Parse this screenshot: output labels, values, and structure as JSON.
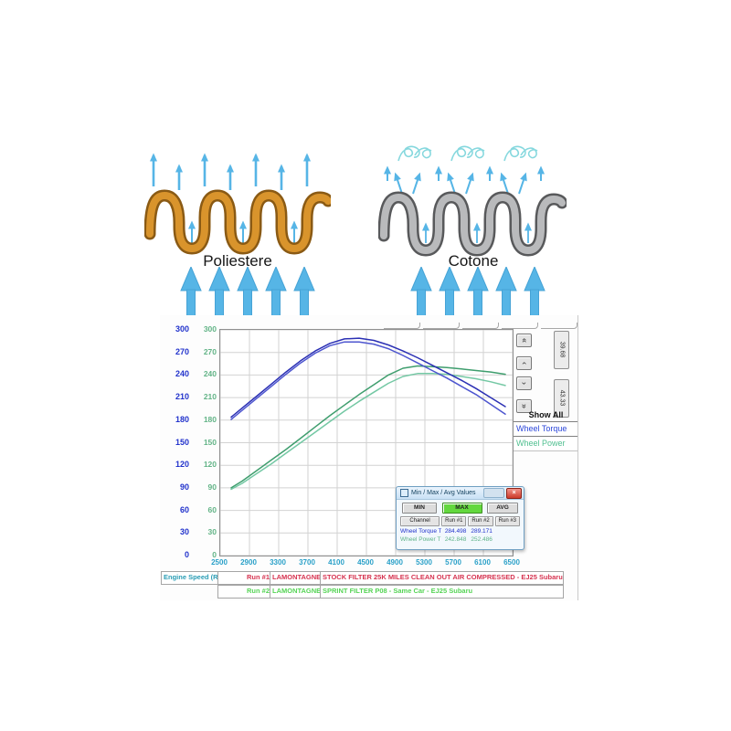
{
  "diagram": {
    "left_label": "Poliestere",
    "right_label": "Cotone",
    "colors": {
      "polyester_wave": "#d9942c",
      "polyester_outline": "#8a5a14",
      "cotton_wave": "#b9babc",
      "cotton_outline": "#58595b",
      "airflow_arrow": "#56b5e6",
      "turbulence": "#86d8de"
    }
  },
  "dyno": {
    "right_panel": {
      "scroll_buttons": [
        "»",
        "›",
        "›",
        "»"
      ],
      "cursor_values": [
        "39.68",
        "43.33"
      ],
      "show_all_label": "Show All",
      "channels": [
        {
          "label": "Wheel Torque",
          "color": "#2b46d9"
        },
        {
          "label": "Wheel Power",
          "color": "#4fbf8f"
        }
      ]
    },
    "dialog": {
      "title": "Min / Max / Avg Values",
      "close_glyph": "×",
      "buttons": {
        "min": "MIN",
        "max": "MAX",
        "avg": "AVG"
      },
      "columns": [
        "Channel",
        "Run #1",
        "Run #2",
        "Run #3"
      ],
      "rows": [
        {
          "channel": "Wheel Torque T ft",
          "run1": "284.498",
          "run2": "289.171",
          "run3": ""
        },
        {
          "channel": "Wheel Power T Hp",
          "run1": "242.848",
          "run2": "252.486",
          "run3": ""
        }
      ]
    },
    "legend": {
      "axis_label": "Engine Speed (R",
      "rows": [
        {
          "run": "Run #1",
          "operator": "LAMONTAGNE (LAMC",
          "description": "STOCK FILTER 25K MILES CLEAN OUT AIR COMPRESSED - EJ25 Subaru"
        },
        {
          "run": "Run #2",
          "operator": "LAMONTAGNE (LAMC",
          "description": "SPRINT FILTER P08 - Same Car - EJ25 Subaru"
        }
      ],
      "colors": {
        "run1_text": "#d63350",
        "run2_text": "#55d455",
        "axis_text": "#2a9db5"
      }
    }
  },
  "chart_data": {
    "type": "line",
    "xlabel": "Engine Speed (R",
    "xlim": [
      2500,
      6500
    ],
    "ylim": [
      0,
      300
    ],
    "x_ticks": [
      2500,
      2900,
      3300,
      3700,
      4100,
      4500,
      4900,
      5300,
      5700,
      6100,
      6500
    ],
    "y_ticks": [
      0,
      30,
      60,
      90,
      120,
      150,
      180,
      210,
      240,
      270,
      300
    ],
    "grid": true,
    "legend_position": "right",
    "axes_note": "outer blue axis = Wheel Torque, inner green axis = Wheel Power",
    "x": [
      2650,
      2800,
      3000,
      3200,
      3400,
      3600,
      3800,
      4000,
      4200,
      4400,
      4600,
      4800,
      5000,
      5200,
      5400,
      5600,
      5800,
      6000,
      6200,
      6400
    ],
    "series": [
      {
        "name": "Wheel Power Run #1 (stock filter)",
        "color": "#74c8a4",
        "values": [
          88,
          96,
          109,
          122,
          136,
          150,
          164,
          178,
          192,
          205,
          217,
          229,
          238,
          242,
          242,
          241,
          238,
          235,
          231,
          226
        ]
      },
      {
        "name": "Wheel Power Run #2 (Sprint Filter P08)",
        "color": "#3f9e6e",
        "values": [
          90,
          99,
          113,
          127,
          141,
          156,
          171,
          186,
          200,
          214,
          227,
          240,
          249,
          252,
          251,
          250,
          248,
          246,
          244,
          241
        ]
      },
      {
        "name": "Wheel Torque Run #1 (stock filter)",
        "color": "#4d55cf",
        "values": [
          181,
          193,
          209,
          225,
          241,
          256,
          269,
          279,
          284,
          284,
          281,
          275,
          266,
          256,
          246,
          236,
          225,
          214,
          201,
          188
        ]
      },
      {
        "name": "Wheel Torque Run #2 (Sprint Filter P08)",
        "color": "#2b30b4",
        "values": [
          184,
          196,
          212,
          228,
          244,
          259,
          272,
          282,
          288,
          289,
          286,
          280,
          272,
          263,
          253,
          243,
          233,
          222,
          210,
          198
        ]
      }
    ]
  }
}
